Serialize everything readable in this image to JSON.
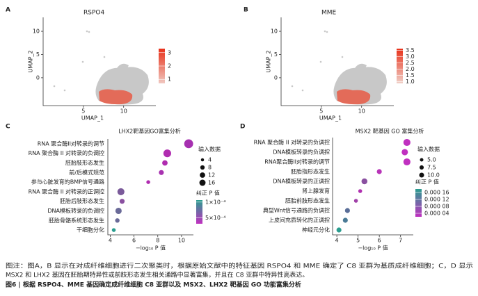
{
  "chart_data": [
    {
      "type": "umap",
      "panel": "A",
      "title": "RSPO4",
      "xlabel": "UMAP_1",
      "ylabel": "UMAP_2",
      "xlim": [
        0,
        14
      ],
      "xticks": [
        5,
        10
      ],
      "ylim": [
        -6,
        13
      ],
      "yticks": [
        0,
        5,
        10
      ],
      "colorbar": {
        "clim": [
          3.3,
          0.7
        ],
        "ticks": [
          3,
          2,
          1
        ],
        "colors": [
          "#e8311a",
          "#f0c8c0"
        ]
      }
    },
    {
      "type": "umap",
      "panel": "B",
      "title": "MME",
      "xlabel": "UMAP_1",
      "ylabel": "UMAP_2",
      "xlim": [
        0,
        14
      ],
      "xticks": [
        5,
        10
      ],
      "ylim": [
        -6,
        13
      ],
      "yticks": [
        0,
        5,
        10
      ],
      "colorbar": {
        "clim": [
          3.65,
          0.85
        ],
        "ticks": [
          3.5,
          {
            "value": 3,
            "label": "3.0"
          },
          2.5,
          {
            "value": 2,
            "label": "2.0"
          },
          1.5,
          {
            "value": 1,
            "label": "1.0"
          }
        ],
        "colors": [
          "#e8311a",
          "#f0d0c8"
        ]
      }
    },
    {
      "type": "dot",
      "panel": "C",
      "title": "LHX2靶基因GO富集分析",
      "xlabel": "−log₁₀ P 值",
      "categories": [
        "RNA 聚合酶II对转录的调节",
        "RNA 聚合酶 II 对转录的负调控",
        "胚胎肢形态发生",
        "前/后模式规范",
        "参与心脏发育的BMP信号通路",
        "RNA 聚合酶 II 对转录的正调控",
        "胚胎后肢形态发生",
        "DNA模板转录的负调控",
        "胚胎骨骼系统形态发生",
        "干细胞分化"
      ],
      "values": [
        10.6,
        8.8,
        8.6,
        8.3,
        7.2,
        4.9,
        5.0,
        4.7,
        4.6,
        4.3
      ],
      "sizes": [
        16,
        12,
        6,
        5,
        3,
        10,
        5,
        8,
        4,
        3
      ],
      "point_colors": [
        "#a630b0",
        "#b02cb0",
        "#b02cb0",
        "#a832b0",
        "#b02cb0",
        "#7a5a9a",
        "#8a50a0",
        "#6a6a98",
        "#6a6a98",
        "#2a9d8f"
      ],
      "xlim": [
        3.8,
        11
      ],
      "xticks": [
        4,
        6,
        8,
        10
      ],
      "size_legend": {
        "title": "输入数据",
        "ticks": [
          4,
          8,
          12,
          16
        ]
      },
      "colorbar": {
        "title": "纠正 P 值",
        "clim": [
          5e-05,
          0.00065
        ],
        "ticks": [
          {
            "value": 0.0001,
            "label": "1×10⁻⁴"
          },
          {
            "value": 0.0005,
            "label": "5×10⁻⁴"
          }
        ],
        "colors": [
          "#2a9d8f",
          "#c030c0"
        ]
      }
    },
    {
      "type": "dot",
      "panel": "D",
      "title": "MSX2 靶基因 GO 富集分析",
      "xlabel": "−log₁₀ P 值",
      "categories": [
        "RNA 聚合酶 II 对转录的负调控",
        "DNA模板转录的负调控",
        "RNA聚合酶II对转录的调节",
        "胚胎指形态发生",
        "DNA模板转录的正调控",
        "肾上腺发育",
        "胚胎前肢形态发生",
        "典型Wnt信号通路的负调控",
        "上皮间充质转化的正调控",
        "神经元分化"
      ],
      "values": [
        7.3,
        7.2,
        7.3,
        6.0,
        5.3,
        5.1,
        4.9,
        4.5,
        4.4,
        4.1
      ],
      "sizes": [
        10,
        8,
        10,
        5,
        7,
        3,
        3,
        5,
        5,
        5
      ],
      "point_colors": [
        "#c030c0",
        "#c030c0",
        "#c030c0",
        "#b834b8",
        "#8a50a0",
        "#b030b0",
        "#a040a8",
        "#5a6e98",
        "#4a7a96",
        "#2a9d8f"
      ],
      "xlim": [
        3.8,
        7.6
      ],
      "xticks": [
        4,
        5,
        6,
        7
      ],
      "size_legend": {
        "title": "输入数据",
        "ticks": [
          {
            "value": 5,
            "label": "5.0"
          },
          7.5,
          {
            "value": 10,
            "label": "10.0"
          }
        ]
      },
      "colorbar": {
        "title": "纠正 P 值",
        "clim": [
          0.00018,
          2e-05
        ],
        "ticks": [
          {
            "value": 0.00016,
            "label": "0.000 16"
          },
          {
            "value": 0.00012,
            "label": "0.000 12"
          },
          {
            "value": 8e-05,
            "label": "0.000 08"
          },
          {
            "value": 4e-05,
            "label": "0.000 04"
          }
        ],
        "colors": [
          "#2a9d8f",
          "#c030c0"
        ]
      }
    }
  ],
  "caption": [
    "图注：图A，B 显示在对成纤维细胞进行二次聚类时，根据原始文献中的特征基因 RSPO4 和 MME 确定了 C8 亚群为基质成纤维细胞；C，D 显示",
    "MSX2 和 LHX2 基因在胚胎期特异性或前肢形态发生相关通路中显著富集，并且在 C8 亚群中特异性高表达。"
  ],
  "figure_title": "图6 | 根据 RSPO4、MME 基因确定成纤维细胞 C8 亚群以及 MSX2、LHX2 靶基因 GO 功能富集分析"
}
